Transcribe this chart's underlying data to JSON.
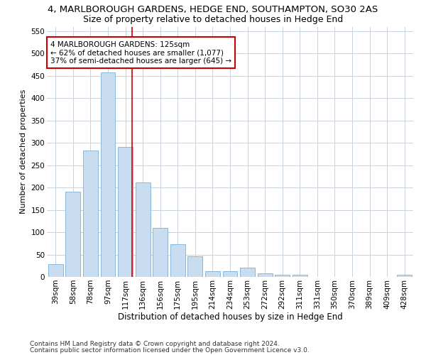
{
  "title1": "4, MARLBOROUGH GARDENS, HEDGE END, SOUTHAMPTON, SO30 2AS",
  "title2": "Size of property relative to detached houses in Hedge End",
  "xlabel": "Distribution of detached houses by size in Hedge End",
  "ylabel": "Number of detached properties",
  "categories": [
    "39sqm",
    "58sqm",
    "78sqm",
    "97sqm",
    "117sqm",
    "136sqm",
    "156sqm",
    "175sqm",
    "195sqm",
    "214sqm",
    "234sqm",
    "253sqm",
    "272sqm",
    "292sqm",
    "311sqm",
    "331sqm",
    "350sqm",
    "370sqm",
    "389sqm",
    "409sqm",
    "428sqm"
  ],
  "values": [
    28,
    190,
    283,
    457,
    290,
    212,
    109,
    73,
    46,
    12,
    12,
    20,
    8,
    5,
    5,
    0,
    0,
    0,
    0,
    0,
    5
  ],
  "bar_color": "#c9ddf0",
  "bar_edge_color": "#7bafd4",
  "annotation_text1": "4 MARLBOROUGH GARDENS: 125sqm",
  "annotation_text2": "← 62% of detached houses are smaller (1,077)",
  "annotation_text3": "37% of semi-detached houses are larger (645) →",
  "annotation_box_color": "#ffffff",
  "annotation_edge_color": "#cc0000",
  "red_line_x": 4.4,
  "ylim": [
    0,
    560
  ],
  "yticks": [
    0,
    50,
    100,
    150,
    200,
    250,
    300,
    350,
    400,
    450,
    500,
    550
  ],
  "footer1": "Contains HM Land Registry data © Crown copyright and database right 2024.",
  "footer2": "Contains public sector information licensed under the Open Government Licence v3.0.",
  "bg_color": "#ffffff",
  "grid_color": "#c8d3e0",
  "title1_fontsize": 9.5,
  "title2_fontsize": 9,
  "xlabel_fontsize": 8.5,
  "ylabel_fontsize": 8,
  "tick_fontsize": 7.5,
  "footer_fontsize": 6.5,
  "annot_fontsize": 7.5
}
